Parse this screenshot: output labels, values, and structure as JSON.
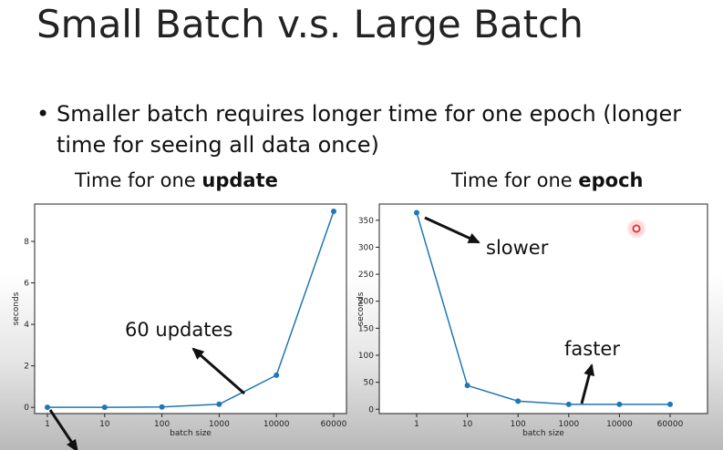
{
  "slide": {
    "title": "Small Batch v.s. Large Batch",
    "bullet": "Smaller batch requires longer time for one epoch (longer time for seeing all data once)"
  },
  "panels": [
    {
      "heading_prefix": "Time for one ",
      "heading_bold": "update"
    },
    {
      "heading_prefix": "Time for one ",
      "heading_bold": "epoch"
    }
  ],
  "colors": {
    "series": "#1f77b4",
    "arrow": "#111111",
    "laser": "#e83030"
  },
  "chart_data": [
    {
      "type": "line",
      "x": [
        "1",
        "10",
        "100",
        "1000",
        "10000",
        "60000"
      ],
      "values": [
        0.0,
        0.0,
        0.02,
        0.15,
        1.55,
        9.45
      ],
      "xlabel": "batch size",
      "ylabel": "seconds",
      "ylim": [
        -0.3,
        9.8
      ],
      "yticks": [
        0,
        2,
        4,
        6,
        8
      ],
      "grid": false,
      "annotations": [
        {
          "text": "60 updates",
          "arrow_to": "1000"
        }
      ]
    },
    {
      "type": "line",
      "x": [
        "1",
        "10",
        "100",
        "1000",
        "10000",
        "60000"
      ],
      "values": [
        364,
        44,
        15,
        9,
        9,
        9
      ],
      "xlabel": "batch size",
      "ylabel": "seconds",
      "ylim": [
        -8,
        380
      ],
      "yticks": [
        0,
        50,
        100,
        150,
        200,
        250,
        300,
        350
      ],
      "grid": false,
      "annotations": [
        {
          "text": "slower",
          "arrow_to": "1"
        },
        {
          "text": "faster",
          "arrow_to": "1000"
        }
      ]
    }
  ]
}
